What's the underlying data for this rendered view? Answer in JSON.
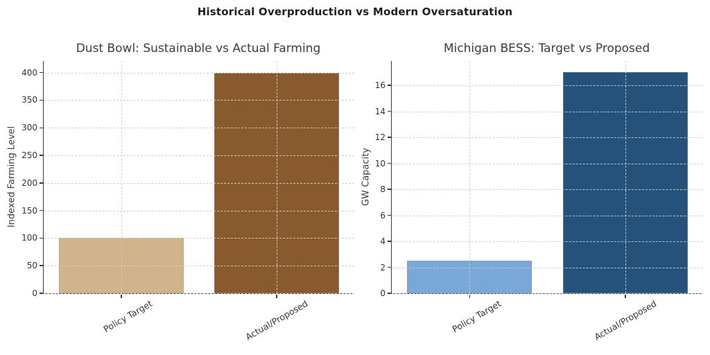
{
  "figure": {
    "title": "Historical Overproduction vs Modern Oversaturation",
    "background": "#ffffff"
  },
  "chart_data": [
    {
      "type": "bar",
      "title": "Dust Bowl: Sustainable vs Actual Farming",
      "categories": [
        "Policy Target",
        "Actual/Proposed"
      ],
      "values": [
        100,
        400
      ],
      "bar_colors": [
        "#d2b48c",
        "#8a5a2f"
      ],
      "xlabel": "",
      "ylabel": "Indexed Farming Level",
      "yticks": [
        0,
        50,
        100,
        150,
        200,
        250,
        300,
        350,
        400
      ],
      "ylim": [
        0,
        421
      ],
      "grid": "dashed-both",
      "legend": "none"
    },
    {
      "type": "bar",
      "title": "Michigan BESS: Target vs Proposed",
      "categories": [
        "Policy Target",
        "Actual/Proposed"
      ],
      "values": [
        2.5,
        17
      ],
      "bar_colors": [
        "#79a8d8",
        "#24527a"
      ],
      "xlabel": "",
      "ylabel": "GW Capacity",
      "yticks": [
        0,
        2,
        4,
        6,
        8,
        10,
        12,
        14,
        16
      ],
      "ylim": [
        0,
        17.87
      ],
      "grid": "dashed-both",
      "legend": "none"
    }
  ]
}
